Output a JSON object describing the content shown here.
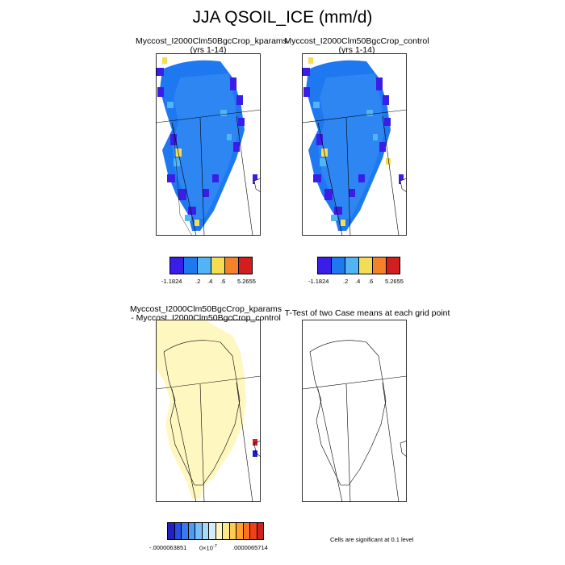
{
  "title": "JJA QSOIL_ICE (mm/d)",
  "panels": {
    "p1": {
      "title": "Myccost_I2000Clm50BgcCrop_kparams",
      "subtitle": "(yrs 1-14)"
    },
    "p2": {
      "title": "Myccost_I2000Clm50BgcCrop_control",
      "subtitle": "(yrs 1-14)"
    },
    "p3": {
      "title_line1": "Myccost_I2000Clm50BgcCrop_kparams",
      "title_line2": "- Myccost_I2000Clm50BgcCrop_control"
    },
    "p4": {
      "title": "T-Test of two Case means at each grid point"
    }
  },
  "colorbars": {
    "top": {
      "colors": [
        "#3a1ee8",
        "#1e78f0",
        "#50b4f5",
        "#f5dc55",
        "#f58228",
        "#d21e1e"
      ],
      "labels": [
        "-1.1824",
        ".2",
        ".4",
        ".6",
        "5.2655"
      ]
    },
    "diff": {
      "colors": [
        "#2020c8",
        "#2a4ee0",
        "#3a78f0",
        "#4a9cf5",
        "#78bef8",
        "#a8daf8",
        "#d4ecf8",
        "#fff7c0",
        "#ffe88a",
        "#ffcc50",
        "#ffa030",
        "#ff7020",
        "#f04018",
        "#d02020"
      ],
      "labels": [
        "-.0000063851",
        "0×10",
        "-7",
        ".0000065714"
      ]
    }
  },
  "note": "Cells are significant at 0.1 level"
}
